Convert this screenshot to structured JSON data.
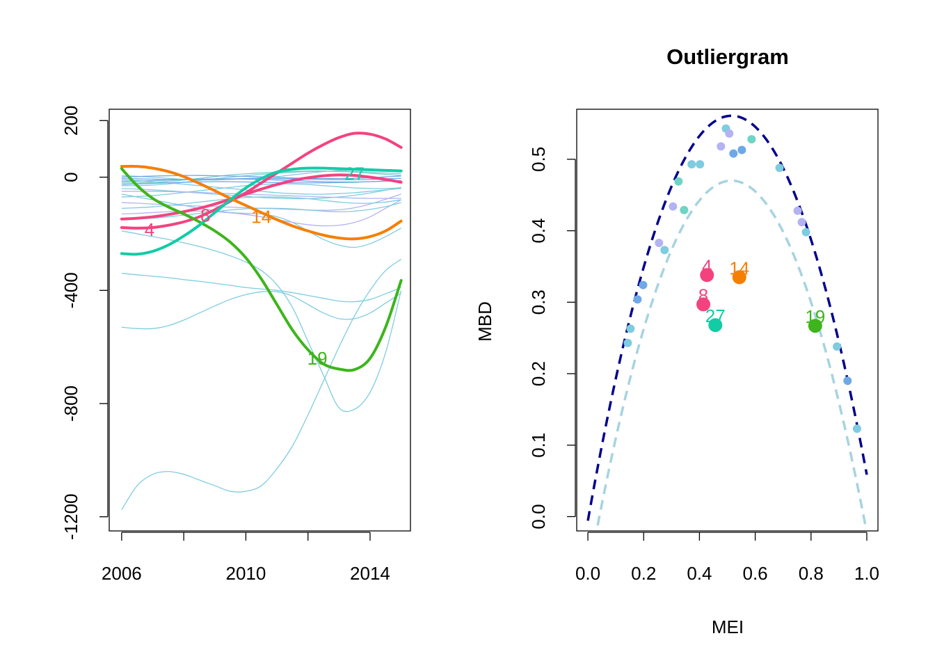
{
  "colors": {
    "bg_line": "#7ECCE0",
    "bg_blue": "#6FA8E8",
    "bg_lav": "#B3B3F2",
    "bg_teal": "#6ED4C4",
    "dark_navy": "#00008B",
    "light_blue": "#A6D3E0",
    "c4": "#F4427F",
    "c8": "#F4427F",
    "c14": "#F57F00",
    "c19": "#3DB51B",
    "c27": "#12CCA6"
  },
  "chart_data": [
    {
      "type": "line",
      "title": "",
      "xlabel": "",
      "ylabel": "",
      "xlim": [
        2005.6,
        2015.3
      ],
      "ylim": [
        -1250,
        240
      ],
      "x_ticks": [
        2006,
        2008,
        2010,
        2012,
        2014
      ],
      "x_tick_labels": [
        "2006",
        "2010",
        "2014"
      ],
      "x_tick_label_values": [
        2006,
        2010,
        2014
      ],
      "y_ticks": [
        -1200,
        -800,
        -400,
        0,
        200
      ],
      "y_tick_labels": [
        "-1200",
        "-800",
        "-400",
        "0",
        "200"
      ],
      "x": [
        2006,
        2006.5,
        2007,
        2007.5,
        2008,
        2008.5,
        2009,
        2009.5,
        2010,
        2010.5,
        2011,
        2011.5,
        2012,
        2012.5,
        2013,
        2013.5,
        2014,
        2014.5,
        2015
      ],
      "background_series": [
        {
          "color": "bg_line",
          "values": [
            -1175,
            -1090,
            -1050,
            -1040,
            -1050,
            -1070,
            -1090,
            -1110,
            -1110,
            -1090,
            -1030,
            -950,
            -840,
            -720,
            -600,
            -490,
            -400,
            -330,
            -290
          ]
        },
        {
          "color": "bg_line",
          "values": [
            -340,
            -345,
            -350,
            -355,
            -362,
            -368,
            -375,
            -382,
            -390,
            -395,
            -400,
            -408,
            -418,
            -428,
            -438,
            -440,
            -432,
            -412,
            -390
          ]
        },
        {
          "color": "bg_line",
          "values": [
            -530,
            -535,
            -535,
            -525,
            -505,
            -480,
            -455,
            -432,
            -415,
            -405,
            -405,
            -420,
            -450,
            -480,
            -500,
            -500,
            -480,
            -445,
            -410
          ]
        },
        {
          "color": "bg_line",
          "values": [
            -190,
            -200,
            -210,
            -220,
            -232,
            -245,
            -260,
            -278,
            -300,
            -330,
            -380,
            -460,
            -580,
            -700,
            -815,
            -820,
            -760,
            -620,
            -400
          ]
        },
        {
          "color": "bg_line",
          "values": [
            -60,
            -70,
            -80,
            -90,
            -100,
            -110,
            -118,
            -125,
            -128,
            -130,
            -140,
            -160,
            -190,
            -220,
            -240,
            -248,
            -235,
            -210,
            -180
          ]
        },
        {
          "color": "bg_line",
          "values": [
            -10,
            -12,
            -16,
            -20,
            -25,
            -30,
            -35,
            -40,
            -45,
            -50,
            -55,
            -58,
            -60,
            -60,
            -58,
            -55,
            -50,
            -45,
            -40
          ]
        },
        {
          "color": "bg_line",
          "values": [
            -30,
            -30,
            -28,
            -24,
            -18,
            -12,
            -6,
            0,
            5,
            10,
            14,
            17,
            20,
            21,
            21,
            20,
            18,
            15,
            12
          ]
        },
        {
          "color": "bg_line",
          "values": [
            -70,
            -68,
            -65,
            -60,
            -54,
            -48,
            -42,
            -36,
            -30,
            -26,
            -24,
            -24,
            -26,
            -30,
            -34,
            -38,
            -40,
            -40,
            -38
          ]
        },
        {
          "color": "bg_line",
          "values": [
            -40,
            -42,
            -45,
            -48,
            -52,
            -56,
            -60,
            -64,
            -68,
            -72,
            -74,
            -76,
            -76,
            -74,
            -70,
            -64,
            -56,
            -46,
            -36
          ]
        },
        {
          "color": "bg_line",
          "values": [
            5,
            3,
            0,
            -4,
            -8,
            -10,
            -10,
            -8,
            -5,
            -2,
            2,
            8,
            14,
            20,
            24,
            26,
            25,
            22,
            18
          ]
        },
        {
          "color": "bg_teal",
          "values": [
            -20,
            -20,
            -18,
            -15,
            -10,
            -4,
            2,
            8,
            12,
            15,
            18,
            20,
            22,
            22,
            20,
            18,
            14,
            10,
            6
          ]
        },
        {
          "color": "bg_blue",
          "values": [
            -5,
            -6,
            -7,
            -8,
            -8,
            -8,
            -7,
            -6,
            -5,
            -5,
            -5,
            -6,
            -7,
            -8,
            -9,
            -9,
            -8,
            -6,
            -4
          ]
        },
        {
          "color": "bg_blue",
          "values": [
            -15,
            -14,
            -12,
            -10,
            -8,
            -7,
            -6,
            -6,
            -7,
            -8,
            -10,
            -12,
            -14,
            -16,
            -17,
            -17,
            -16,
            -14,
            -12
          ]
        },
        {
          "color": "bg_blue",
          "values": [
            0,
            2,
            4,
            5,
            6,
            6,
            5,
            4,
            3,
            1,
            -1,
            -3,
            -4,
            -5,
            -5,
            -4,
            -2,
            1,
            4
          ]
        },
        {
          "color": "bg_blue",
          "values": [
            -25,
            -24,
            -22,
            -20,
            -18,
            -17,
            -16,
            -16,
            -17,
            -18,
            -19,
            -20,
            -20,
            -20,
            -19,
            -18,
            -16,
            -14,
            -12
          ]
        },
        {
          "color": "bg_lav",
          "values": [
            -130,
            -128,
            -125,
            -122,
            -120,
            -120,
            -122,
            -126,
            -132,
            -140,
            -150,
            -160,
            -168,
            -172,
            -170,
            -160,
            -140,
            -110,
            -80
          ]
        },
        {
          "color": "bg_lav",
          "values": [
            -90,
            -92,
            -95,
            -98,
            -100,
            -102,
            -104,
            -106,
            -108,
            -110,
            -112,
            -114,
            -116,
            -117,
            -115,
            -108,
            -95,
            -78,
            -60
          ]
        },
        {
          "color": "bg_lav",
          "values": [
            -50,
            -50,
            -50,
            -51,
            -52,
            -54,
            -56,
            -58,
            -60,
            -62,
            -64,
            -66,
            -68,
            -70,
            -72,
            -74,
            -75,
            -75,
            -75
          ]
        },
        {
          "color": "bg_line",
          "values": [
            -110,
            -108,
            -105,
            -100,
            -94,
            -88,
            -82,
            -76,
            -72,
            -70,
            -70,
            -72,
            -76,
            -82,
            -88,
            -92,
            -92,
            -88,
            -80
          ]
        },
        {
          "color": "bg_line",
          "values": [
            -150,
            -148,
            -145,
            -140,
            -134,
            -128,
            -122,
            -116,
            -112,
            -110,
            -110,
            -112,
            -116,
            -120,
            -122,
            -120,
            -114,
            -104,
            -90
          ]
        }
      ],
      "highlight_series": [
        {
          "label": "4",
          "color": "c4",
          "label_x": 2006.9,
          "label_y": -185,
          "values": [
            -178,
            -180,
            -178,
            -170,
            -158,
            -140,
            -115,
            -85,
            -55,
            -20,
            15,
            50,
            85,
            115,
            140,
            155,
            152,
            135,
            105
          ]
        },
        {
          "label": "8",
          "color": "c8",
          "label_x": 2008.7,
          "label_y": -135,
          "values": [
            -148,
            -145,
            -140,
            -132,
            -122,
            -110,
            -95,
            -78,
            -60,
            -42,
            -26,
            -12,
            -2,
            5,
            8,
            6,
            0,
            -8,
            -18
          ]
        },
        {
          "label": "14",
          "color": "c14",
          "label_x": 2010.5,
          "label_y": -140,
          "values": [
            38,
            38,
            32,
            20,
            2,
            -22,
            -48,
            -75,
            -100,
            -125,
            -150,
            -172,
            -190,
            -205,
            -215,
            -218,
            -210,
            -190,
            -155
          ]
        },
        {
          "label": "19",
          "color": "c19",
          "label_x": 2012.3,
          "label_y": -640,
          "values": [
            30,
            -30,
            -75,
            -105,
            -130,
            -158,
            -190,
            -230,
            -285,
            -360,
            -450,
            -540,
            -610,
            -660,
            -678,
            -680,
            -640,
            -530,
            -365
          ]
        },
        {
          "label": "27",
          "color": "c27",
          "label_x": 2013.5,
          "label_y": 12,
          "values": [
            -270,
            -272,
            -262,
            -240,
            -208,
            -170,
            -125,
            -80,
            -38,
            -5,
            18,
            28,
            32,
            32,
            30,
            28,
            26,
            24,
            22
          ]
        }
      ]
    },
    {
      "type": "scatter",
      "title": "Outliergram",
      "xlabel": "MEI",
      "ylabel": "MBD",
      "xlim": [
        -0.04,
        1.04
      ],
      "ylim": [
        -0.02,
        0.57
      ],
      "x_ticks": [
        0.0,
        0.2,
        0.4,
        0.6,
        0.8,
        1.0
      ],
      "x_tick_labels": [
        "0.0",
        "0.2",
        "0.4",
        "0.6",
        "0.8",
        "1.0"
      ],
      "y_ticks": [
        0.0,
        0.1,
        0.2,
        0.3,
        0.4,
        0.5
      ],
      "y_tick_labels": [
        "0.0",
        "0.1",
        "0.2",
        "0.3",
        "0.4",
        "0.5"
      ],
      "upper_parabola": {
        "a0": -0.0057,
        "a1": 2.2,
        "a2": -2.1356,
        "color": "dark_navy"
      },
      "lower_parabola": {
        "a0": -0.0852,
        "a1": 2.1565,
        "a2": -2.0936,
        "color": "light_blue"
      },
      "points": [
        {
          "x": 0.143,
          "y": 0.243,
          "color": "bg_line"
        },
        {
          "x": 0.153,
          "y": 0.263,
          "color": "bg_line"
        },
        {
          "x": 0.178,
          "y": 0.304,
          "color": "bg_blue"
        },
        {
          "x": 0.198,
          "y": 0.324,
          "color": "bg_blue"
        },
        {
          "x": 0.255,
          "y": 0.383,
          "color": "bg_lav"
        },
        {
          "x": 0.275,
          "y": 0.373,
          "color": "bg_line"
        },
        {
          "x": 0.305,
          "y": 0.434,
          "color": "bg_lav"
        },
        {
          "x": 0.325,
          "y": 0.469,
          "color": "bg_teal"
        },
        {
          "x": 0.345,
          "y": 0.429,
          "color": "bg_teal"
        },
        {
          "x": 0.372,
          "y": 0.493,
          "color": "bg_line"
        },
        {
          "x": 0.402,
          "y": 0.493,
          "color": "bg_line"
        },
        {
          "x": 0.477,
          "y": 0.518,
          "color": "bg_lav"
        },
        {
          "x": 0.495,
          "y": 0.543,
          "color": "bg_line"
        },
        {
          "x": 0.507,
          "y": 0.536,
          "color": "bg_lav"
        },
        {
          "x": 0.522,
          "y": 0.508,
          "color": "bg_blue"
        },
        {
          "x": 0.552,
          "y": 0.513,
          "color": "bg_blue"
        },
        {
          "x": 0.587,
          "y": 0.528,
          "color": "bg_teal"
        },
        {
          "x": 0.687,
          "y": 0.488,
          "color": "bg_line"
        },
        {
          "x": 0.752,
          "y": 0.428,
          "color": "bg_lav"
        },
        {
          "x": 0.767,
          "y": 0.412,
          "color": "bg_lav"
        },
        {
          "x": 0.782,
          "y": 0.398,
          "color": "bg_line"
        },
        {
          "x": 0.893,
          "y": 0.238,
          "color": "bg_line"
        },
        {
          "x": 0.931,
          "y": 0.19,
          "color": "bg_blue"
        },
        {
          "x": 0.965,
          "y": 0.123,
          "color": "bg_line"
        }
      ],
      "outliers": [
        {
          "label": "4",
          "x": 0.427,
          "y": 0.338,
          "color": "c4"
        },
        {
          "label": "8",
          "x": 0.414,
          "y": 0.297,
          "color": "c8"
        },
        {
          "label": "14",
          "x": 0.543,
          "y": 0.335,
          "color": "c14"
        },
        {
          "label": "19",
          "x": 0.815,
          "y": 0.267,
          "color": "c19"
        },
        {
          "label": "27",
          "x": 0.457,
          "y": 0.268,
          "color": "c27"
        }
      ]
    }
  ]
}
